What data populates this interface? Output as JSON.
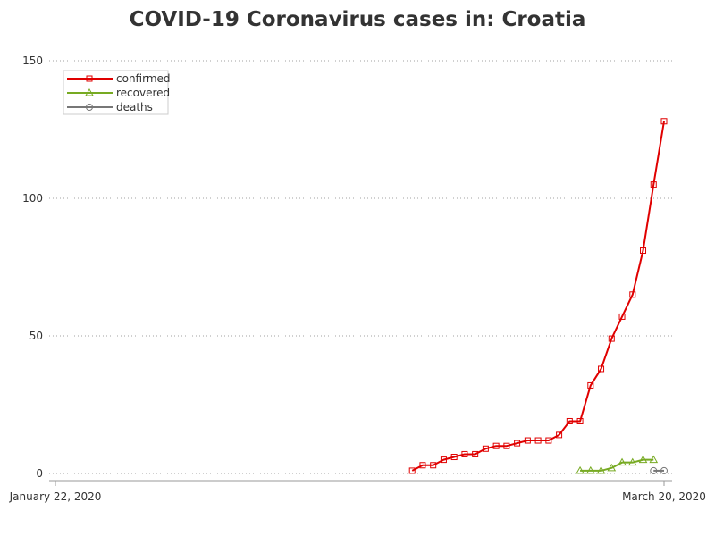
{
  "chart_data": {
    "type": "line",
    "title": "COVID-19 Coronavirus cases in: Croatia",
    "x_start_label": "January 22, 2020",
    "x_end_label": "March 20, 2020",
    "x_first_date": "2020-01-22",
    "x_last_date": "2020-03-20",
    "ylim": [
      0,
      150
    ],
    "yticks": [
      0,
      50,
      100,
      150
    ],
    "grid": true,
    "legend_position": "top-left",
    "series": [
      {
        "name": "confirmed",
        "color": "#e00000",
        "marker": "square",
        "start_date": "2020-02-25",
        "values": [
          1,
          3,
          3,
          5,
          6,
          7,
          7,
          9,
          10,
          10,
          11,
          12,
          12,
          12,
          14,
          19,
          19,
          32,
          38,
          49,
          57,
          65,
          81,
          105,
          128
        ]
      },
      {
        "name": "recovered",
        "color": "#77aa22",
        "marker": "triangle",
        "start_date": "2020-03-12",
        "values": [
          1,
          1,
          1,
          2,
          4,
          4,
          5,
          5
        ]
      },
      {
        "name": "deaths",
        "color": "#777777",
        "marker": "circle",
        "start_date": "2020-03-19",
        "values": [
          1,
          1
        ]
      }
    ]
  }
}
